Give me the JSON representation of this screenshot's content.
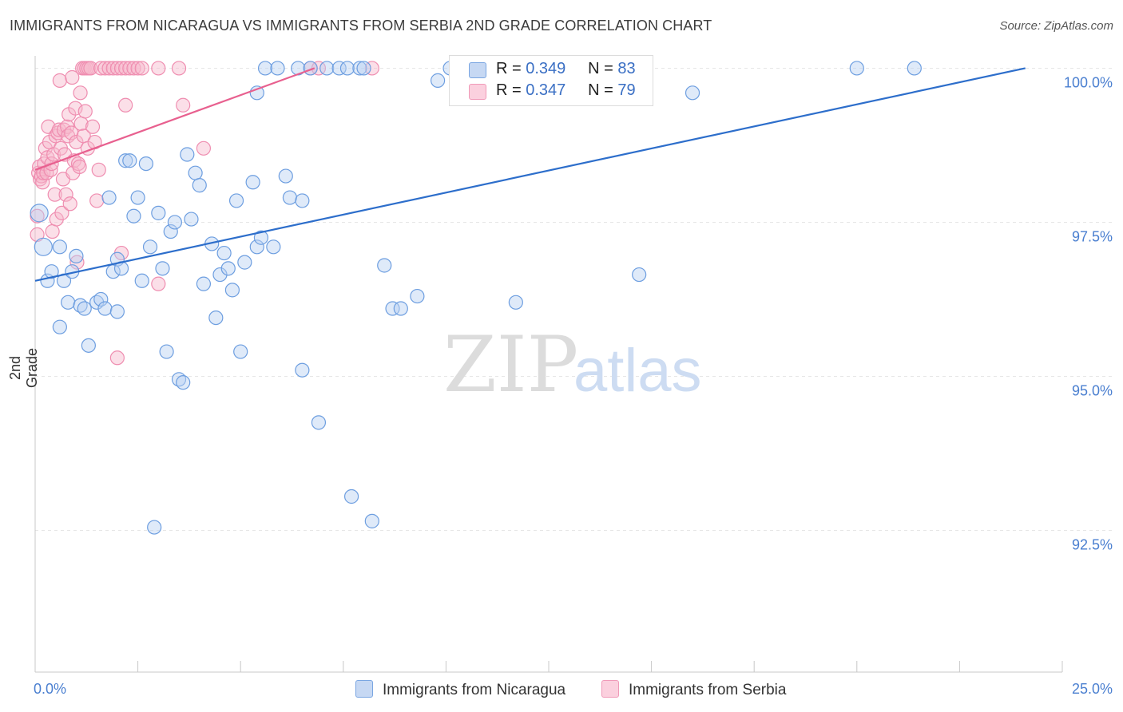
{
  "title": "IMMIGRANTS FROM NICARAGUA VS IMMIGRANTS FROM SERBIA 2ND GRADE CORRELATION CHART",
  "source": "Source: ZipAtlas.com",
  "watermark": {
    "zip": "ZIP",
    "atlas": "atlas"
  },
  "legend": {
    "rows": [
      {
        "r_label": "R =",
        "r_value": "0.349",
        "n_label": "N =",
        "n_value": "83"
      },
      {
        "r_label": "R =",
        "r_value": "0.347",
        "n_label": "N =",
        "n_value": "79"
      }
    ]
  },
  "bottom_legend": {
    "nicaragua": "Immigrants from Nicaragua",
    "serbia": "Immigrants from Serbia"
  },
  "chart_data": {
    "type": "scatter",
    "title": "IMMIGRANTS FROM NICARAGUA VS IMMIGRANTS FROM SERBIA 2ND GRADE CORRELATION CHART",
    "xlabel": "",
    "ylabel": "2nd Grade",
    "xlim": [
      0,
      25
    ],
    "ylim": [
      90.2,
      100.2
    ],
    "x_tick_labels": [
      "0.0%",
      "25.0%"
    ],
    "y_ticks": [
      92.5,
      95.0,
      97.5,
      100.0
    ],
    "y_tick_labels": [
      "92.5%",
      "95.0%",
      "97.5%",
      "100.0%"
    ],
    "grid": true,
    "colors": {
      "nicaragua": "#6d9ee0",
      "serbia": "#f08db0",
      "nicaragua_line": "#2d6ecb",
      "serbia_line": "#e8608f"
    },
    "series": [
      {
        "name": "Immigrants from Nicaragua",
        "trend": {
          "x": [
            0.0,
            24.1
          ],
          "y": [
            96.55,
            100.0
          ]
        },
        "points": [
          [
            0.1,
            97.65
          ],
          [
            0.2,
            97.1
          ],
          [
            0.3,
            96.55
          ],
          [
            0.4,
            96.7
          ],
          [
            0.6,
            97.1
          ],
          [
            0.7,
            96.55
          ],
          [
            0.9,
            96.7
          ],
          [
            0.6,
            95.8
          ],
          [
            0.8,
            96.2
          ],
          [
            1.0,
            96.95
          ],
          [
            1.1,
            96.15
          ],
          [
            1.2,
            96.1
          ],
          [
            1.3,
            95.5
          ],
          [
            1.5,
            96.2
          ],
          [
            1.6,
            96.25
          ],
          [
            1.7,
            96.1
          ],
          [
            1.8,
            97.9
          ],
          [
            1.9,
            96.7
          ],
          [
            2.0,
            96.05
          ],
          [
            2.0,
            96.9
          ],
          [
            2.1,
            96.75
          ],
          [
            2.2,
            98.5
          ],
          [
            2.3,
            98.5
          ],
          [
            2.4,
            97.6
          ],
          [
            2.5,
            97.9
          ],
          [
            2.6,
            96.55
          ],
          [
            2.7,
            98.45
          ],
          [
            2.8,
            97.1
          ],
          [
            2.9,
            92.55
          ],
          [
            3.0,
            97.65
          ],
          [
            3.1,
            96.75
          ],
          [
            3.2,
            95.4
          ],
          [
            3.3,
            97.35
          ],
          [
            3.4,
            97.5
          ],
          [
            3.5,
            94.95
          ],
          [
            3.6,
            94.9
          ],
          [
            3.7,
            98.6
          ],
          [
            3.8,
            97.55
          ],
          [
            3.9,
            98.3
          ],
          [
            4.0,
            98.1
          ],
          [
            4.1,
            96.5
          ],
          [
            4.3,
            97.15
          ],
          [
            4.4,
            95.95
          ],
          [
            4.5,
            96.65
          ],
          [
            4.6,
            97.0
          ],
          [
            4.7,
            96.75
          ],
          [
            4.8,
            96.4
          ],
          [
            4.9,
            97.85
          ],
          [
            5.0,
            95.4
          ],
          [
            5.1,
            96.85
          ],
          [
            5.3,
            98.15
          ],
          [
            5.4,
            97.1
          ],
          [
            5.5,
            97.25
          ],
          [
            5.6,
            100.0
          ],
          [
            5.8,
            97.1
          ],
          [
            5.9,
            100.0
          ],
          [
            6.1,
            98.25
          ],
          [
            6.2,
            97.9
          ],
          [
            6.4,
            100.0
          ],
          [
            6.5,
            97.85
          ],
          [
            6.5,
            95.1
          ],
          [
            6.7,
            100.0
          ],
          [
            6.9,
            94.25
          ],
          [
            7.1,
            100.0
          ],
          [
            7.4,
            100.0
          ],
          [
            7.6,
            100.0
          ],
          [
            7.7,
            93.05
          ],
          [
            7.9,
            100.0
          ],
          [
            8.0,
            100.0
          ],
          [
            8.2,
            92.65
          ],
          [
            8.5,
            96.8
          ],
          [
            8.7,
            96.1
          ],
          [
            8.9,
            96.1
          ],
          [
            9.3,
            96.3
          ],
          [
            9.8,
            99.8
          ],
          [
            10.1,
            100.0
          ],
          [
            11.2,
            100.0
          ],
          [
            11.7,
            96.2
          ],
          [
            14.7,
            96.65
          ],
          [
            16.0,
            99.6
          ],
          [
            20.0,
            100.0
          ],
          [
            21.4,
            100.0
          ],
          [
            5.4,
            99.6
          ]
        ]
      },
      {
        "name": "Immigrants from Serbia",
        "trend": {
          "x": [
            0.0,
            6.8
          ],
          "y": [
            98.35,
            100.0
          ]
        },
        "points": [
          [
            0.05,
            97.6
          ],
          [
            0.05,
            97.3
          ],
          [
            0.08,
            98.3
          ],
          [
            0.1,
            98.4
          ],
          [
            0.12,
            98.2
          ],
          [
            0.15,
            98.25
          ],
          [
            0.18,
            98.15
          ],
          [
            0.2,
            98.3
          ],
          [
            0.22,
            98.45
          ],
          [
            0.25,
            98.7
          ],
          [
            0.28,
            98.3
          ],
          [
            0.3,
            98.55
          ],
          [
            0.32,
            99.05
          ],
          [
            0.35,
            98.8
          ],
          [
            0.38,
            98.35
          ],
          [
            0.4,
            98.45
          ],
          [
            0.42,
            97.35
          ],
          [
            0.45,
            98.6
          ],
          [
            0.48,
            97.95
          ],
          [
            0.5,
            98.9
          ],
          [
            0.52,
            97.55
          ],
          [
            0.55,
            98.95
          ],
          [
            0.58,
            99.0
          ],
          [
            0.6,
            99.8
          ],
          [
            0.62,
            98.7
          ],
          [
            0.65,
            97.65
          ],
          [
            0.68,
            98.2
          ],
          [
            0.7,
            99.0
          ],
          [
            0.72,
            98.6
          ],
          [
            0.75,
            97.95
          ],
          [
            0.78,
            99.05
          ],
          [
            0.8,
            98.9
          ],
          [
            0.82,
            99.25
          ],
          [
            0.85,
            97.8
          ],
          [
            0.88,
            98.95
          ],
          [
            0.9,
            99.85
          ],
          [
            0.92,
            98.3
          ],
          [
            0.95,
            98.5
          ],
          [
            0.98,
            99.35
          ],
          [
            1.0,
            98.8
          ],
          [
            1.02,
            96.85
          ],
          [
            1.05,
            98.45
          ],
          [
            1.08,
            98.4
          ],
          [
            1.1,
            99.6
          ],
          [
            1.12,
            99.1
          ],
          [
            1.15,
            100.0
          ],
          [
            1.18,
            98.9
          ],
          [
            1.2,
            100.0
          ],
          [
            1.22,
            99.3
          ],
          [
            1.25,
            100.0
          ],
          [
            1.28,
            98.7
          ],
          [
            1.3,
            100.0
          ],
          [
            1.35,
            100.0
          ],
          [
            1.4,
            99.05
          ],
          [
            1.45,
            98.8
          ],
          [
            1.5,
            97.85
          ],
          [
            1.55,
            98.35
          ],
          [
            1.6,
            100.0
          ],
          [
            1.7,
            100.0
          ],
          [
            1.8,
            100.0
          ],
          [
            1.9,
            100.0
          ],
          [
            2.0,
            100.0
          ],
          [
            2.1,
            100.0
          ],
          [
            2.2,
            100.0
          ],
          [
            2.3,
            100.0
          ],
          [
            2.4,
            100.0
          ],
          [
            2.5,
            100.0
          ],
          [
            2.6,
            100.0
          ],
          [
            2.0,
            95.3
          ],
          [
            2.1,
            97.0
          ],
          [
            2.2,
            99.4
          ],
          [
            3.0,
            100.0
          ],
          [
            3.0,
            96.5
          ],
          [
            3.5,
            100.0
          ],
          [
            3.6,
            99.4
          ],
          [
            4.1,
            98.7
          ],
          [
            6.7,
            100.0
          ],
          [
            6.9,
            100.0
          ],
          [
            8.2,
            100.0
          ]
        ]
      }
    ]
  }
}
